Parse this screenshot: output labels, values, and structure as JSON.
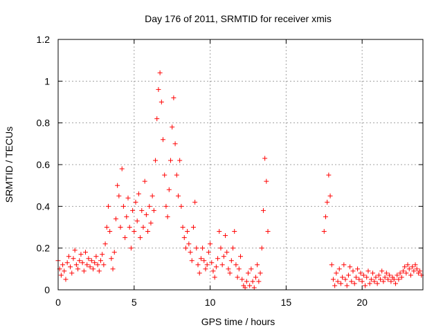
{
  "chart_data": {
    "type": "scatter",
    "title": "Day 176 of 2011, SRMTID for receiver xmis",
    "xlabel": "GPS time / hours",
    "ylabel": "SRMTID / TECUs",
    "xlim": [
      0,
      24
    ],
    "ylim": [
      0,
      1.2
    ],
    "x_ticks": [
      0,
      5,
      10,
      15,
      20
    ],
    "x_tick_labels": [
      "0",
      "5",
      "10",
      "15",
      "20"
    ],
    "y_ticks": [
      0,
      0.2,
      0.4,
      0.6,
      0.8,
      1.0,
      1.2
    ],
    "y_tick_labels": [
      "0",
      "0.2",
      "0.4",
      "0.6",
      "0.8",
      "1",
      "1.2"
    ],
    "grid": true,
    "marker": "+",
    "series_color": "#ff0000",
    "series": [
      {
        "name": "SRMTID",
        "points": [
          [
            0.0,
            0.14
          ],
          [
            0.1,
            0.1
          ],
          [
            0.2,
            0.07
          ],
          [
            0.3,
            0.12
          ],
          [
            0.4,
            0.09
          ],
          [
            0.5,
            0.05
          ],
          [
            0.6,
            0.13
          ],
          [
            0.7,
            0.16
          ],
          [
            0.8,
            0.11
          ],
          [
            0.9,
            0.08
          ],
          [
            1.0,
            0.15
          ],
          [
            1.1,
            0.19
          ],
          [
            1.2,
            0.12
          ],
          [
            1.3,
            0.1
          ],
          [
            1.4,
            0.14
          ],
          [
            1.5,
            0.17
          ],
          [
            1.6,
            0.13
          ],
          [
            1.7,
            0.09
          ],
          [
            1.8,
            0.18
          ],
          [
            1.9,
            0.12
          ],
          [
            2.0,
            0.15
          ],
          [
            2.1,
            0.11
          ],
          [
            2.2,
            0.14
          ],
          [
            2.3,
            0.1
          ],
          [
            2.4,
            0.13
          ],
          [
            2.5,
            0.16
          ],
          [
            2.6,
            0.12
          ],
          [
            2.7,
            0.09
          ],
          [
            2.8,
            0.14
          ],
          [
            2.9,
            0.17
          ],
          [
            3.0,
            0.12
          ],
          [
            3.1,
            0.22
          ],
          [
            3.2,
            0.3
          ],
          [
            3.3,
            0.4
          ],
          [
            3.4,
            0.28
          ],
          [
            3.5,
            0.15
          ],
          [
            3.6,
            0.1
          ],
          [
            3.7,
            0.18
          ],
          [
            3.8,
            0.34
          ],
          [
            3.9,
            0.5
          ],
          [
            4.0,
            0.45
          ],
          [
            4.1,
            0.3
          ],
          [
            4.2,
            0.58
          ],
          [
            4.3,
            0.4
          ],
          [
            4.4,
            0.25
          ],
          [
            4.5,
            0.35
          ],
          [
            4.6,
            0.44
          ],
          [
            4.7,
            0.3
          ],
          [
            4.8,
            0.2
          ],
          [
            4.9,
            0.38
          ],
          [
            5.0,
            0.28
          ],
          [
            5.1,
            0.42
          ],
          [
            5.2,
            0.33
          ],
          [
            5.3,
            0.46
          ],
          [
            5.4,
            0.25
          ],
          [
            5.5,
            0.38
          ],
          [
            5.6,
            0.3
          ],
          [
            5.7,
            0.52
          ],
          [
            5.8,
            0.36
          ],
          [
            5.9,
            0.28
          ],
          [
            6.0,
            0.4
          ],
          [
            6.1,
            0.32
          ],
          [
            6.2,
            0.45
          ],
          [
            6.3,
            0.38
          ],
          [
            6.4,
            0.62
          ],
          [
            6.5,
            0.82
          ],
          [
            6.6,
            0.96
          ],
          [
            6.7,
            1.04
          ],
          [
            6.8,
            0.9
          ],
          [
            6.9,
            0.72
          ],
          [
            7.0,
            0.55
          ],
          [
            7.1,
            0.4
          ],
          [
            7.2,
            0.35
          ],
          [
            7.3,
            0.48
          ],
          [
            7.4,
            0.62
          ],
          [
            7.5,
            0.78
          ],
          [
            7.6,
            0.92
          ],
          [
            7.7,
            0.7
          ],
          [
            7.8,
            0.55
          ],
          [
            7.9,
            0.45
          ],
          [
            8.0,
            0.62
          ],
          [
            8.1,
            0.4
          ],
          [
            8.2,
            0.3
          ],
          [
            8.3,
            0.25
          ],
          [
            8.4,
            0.2
          ],
          [
            8.5,
            0.28
          ],
          [
            8.6,
            0.22
          ],
          [
            8.7,
            0.18
          ],
          [
            8.8,
            0.14
          ],
          [
            8.9,
            0.3
          ],
          [
            9.0,
            0.42
          ],
          [
            9.1,
            0.2
          ],
          [
            9.2,
            0.12
          ],
          [
            9.3,
            0.08
          ],
          [
            9.4,
            0.15
          ],
          [
            9.5,
            0.2
          ],
          [
            9.6,
            0.14
          ],
          [
            9.7,
            0.1
          ],
          [
            9.8,
            0.12
          ],
          [
            9.9,
            0.18
          ],
          [
            10.0,
            0.22
          ],
          [
            10.1,
            0.13
          ],
          [
            10.2,
            0.09
          ],
          [
            10.3,
            0.06
          ],
          [
            10.4,
            0.11
          ],
          [
            10.5,
            0.15
          ],
          [
            10.6,
            0.28
          ],
          [
            10.7,
            0.2
          ],
          [
            10.8,
            0.12
          ],
          [
            10.9,
            0.16
          ],
          [
            11.0,
            0.26
          ],
          [
            11.1,
            0.18
          ],
          [
            11.2,
            0.1
          ],
          [
            11.3,
            0.08
          ],
          [
            11.4,
            0.14
          ],
          [
            11.5,
            0.2
          ],
          [
            11.6,
            0.28
          ],
          [
            11.7,
            0.12
          ],
          [
            11.8,
            0.06
          ],
          [
            11.9,
            0.1
          ],
          [
            12.0,
            0.16
          ],
          [
            12.1,
            0.05
          ],
          [
            12.2,
            0.02
          ],
          [
            12.3,
            0.01
          ],
          [
            12.4,
            0.04
          ],
          [
            12.5,
            0.08
          ],
          [
            12.6,
            0.02
          ],
          [
            12.7,
            0.1
          ],
          [
            12.8,
            0.04
          ],
          [
            12.9,
            0.01
          ],
          [
            13.0,
            0.06
          ],
          [
            13.1,
            0.12
          ],
          [
            13.2,
            0.04
          ],
          [
            13.3,
            0.08
          ],
          [
            13.4,
            0.2
          ],
          [
            13.5,
            0.38
          ],
          [
            13.6,
            0.63
          ],
          [
            13.7,
            0.52
          ],
          [
            13.8,
            0.28
          ],
          [
            17.5,
            0.28
          ],
          [
            17.6,
            0.35
          ],
          [
            17.7,
            0.42
          ],
          [
            17.8,
            0.55
          ],
          [
            17.9,
            0.45
          ],
          [
            18.0,
            0.12
          ],
          [
            18.1,
            0.05
          ],
          [
            18.2,
            0.02
          ],
          [
            18.3,
            0.08
          ],
          [
            18.4,
            0.04
          ],
          [
            18.5,
            0.1
          ],
          [
            18.6,
            0.03
          ],
          [
            18.7,
            0.06
          ],
          [
            18.8,
            0.12
          ],
          [
            18.9,
            0.05
          ],
          [
            19.0,
            0.02
          ],
          [
            19.1,
            0.07
          ],
          [
            19.2,
            0.11
          ],
          [
            19.3,
            0.04
          ],
          [
            19.4,
            0.09
          ],
          [
            19.5,
            0.03
          ],
          [
            19.6,
            0.06
          ],
          [
            19.7,
            0.1
          ],
          [
            19.8,
            0.05
          ],
          [
            19.9,
            0.08
          ],
          [
            20.0,
            0.04
          ],
          [
            20.1,
            0.07
          ],
          [
            20.2,
            0.02
          ],
          [
            20.3,
            0.06
          ],
          [
            20.4,
            0.09
          ],
          [
            20.5,
            0.03
          ],
          [
            20.6,
            0.05
          ],
          [
            20.7,
            0.08
          ],
          [
            20.8,
            0.04
          ],
          [
            20.9,
            0.06
          ],
          [
            21.0,
            0.03
          ],
          [
            21.1,
            0.07
          ],
          [
            21.2,
            0.05
          ],
          [
            21.3,
            0.09
          ],
          [
            21.4,
            0.04
          ],
          [
            21.5,
            0.06
          ],
          [
            21.6,
            0.08
          ],
          [
            21.7,
            0.05
          ],
          [
            21.8,
            0.07
          ],
          [
            21.9,
            0.04
          ],
          [
            22.0,
            0.06
          ],
          [
            22.1,
            0.05
          ],
          [
            22.2,
            0.03
          ],
          [
            22.3,
            0.07
          ],
          [
            22.4,
            0.05
          ],
          [
            22.5,
            0.08
          ],
          [
            22.6,
            0.06
          ],
          [
            22.7,
            0.09
          ],
          [
            22.8,
            0.11
          ],
          [
            22.9,
            0.08
          ],
          [
            23.0,
            0.12
          ],
          [
            23.1,
            0.1
          ],
          [
            23.2,
            0.07
          ],
          [
            23.3,
            0.11
          ],
          [
            23.4,
            0.09
          ],
          [
            23.5,
            0.12
          ],
          [
            23.6,
            0.1
          ],
          [
            23.7,
            0.08
          ],
          [
            23.8,
            0.09
          ],
          [
            23.9,
            0.07
          ]
        ]
      }
    ]
  }
}
